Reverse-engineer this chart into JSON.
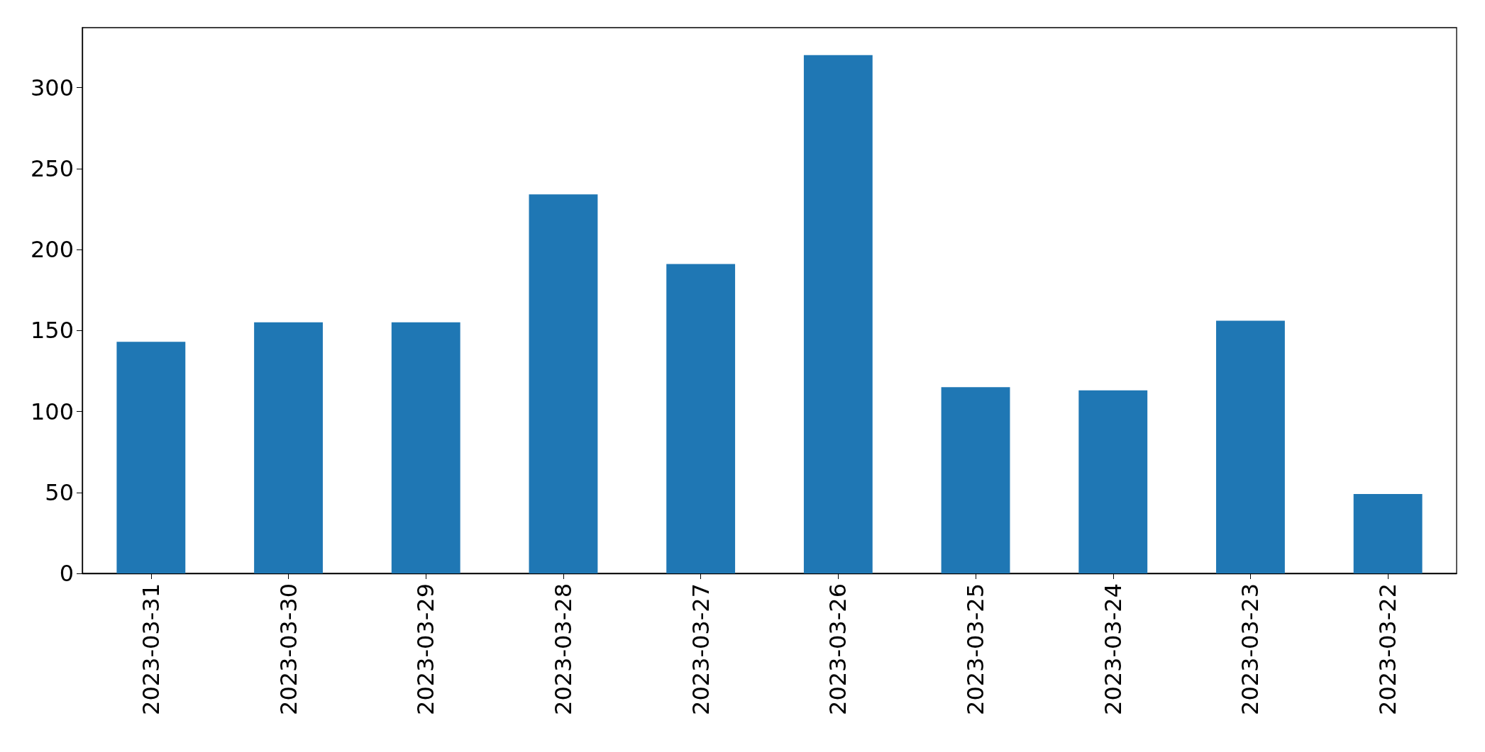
{
  "chart_data": {
    "type": "bar",
    "categories": [
      "2023-03-31",
      "2023-03-30",
      "2023-03-29",
      "2023-03-28",
      "2023-03-27",
      "2023-03-26",
      "2023-03-25",
      "2023-03-24",
      "2023-03-23",
      "2023-03-22"
    ],
    "values": [
      143,
      155,
      155,
      234,
      191,
      320,
      115,
      113,
      156,
      49
    ],
    "color": "#1f77b4",
    "ylim": [
      0,
      337
    ],
    "yticks": [
      0,
      50,
      100,
      150,
      200,
      250,
      300
    ],
    "grid": false
  }
}
